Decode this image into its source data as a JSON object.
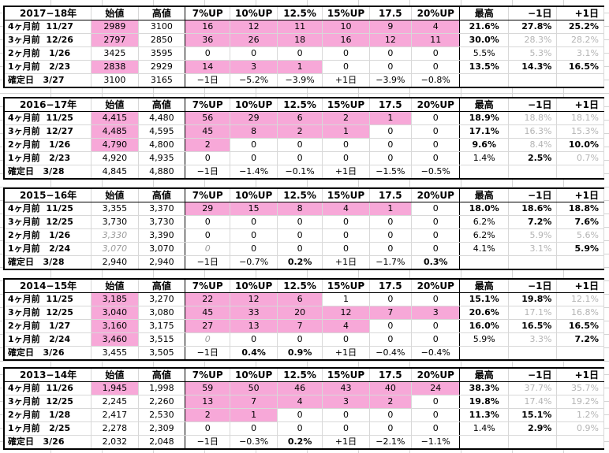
{
  "headers": [
    "始値",
    "高値",
    "7%UP",
    "10%UP",
    "12.5%",
    "15%UP",
    "17.5",
    "20%UP",
    "最高",
    "−1日",
    "+1日"
  ],
  "blocks": [
    {
      "year": "2017−18年",
      "rows": [
        {
          "label": "4ヶ月前  11/27",
          "cells": [
            "2989",
            "3100",
            "16",
            "12",
            "11",
            "10",
            "9",
            "4",
            "21.6%",
            "27.8%",
            "25.2%"
          ],
          "pink": [
            0,
            2,
            3,
            4,
            5,
            6,
            7
          ],
          "gray": [],
          "bold": [
            8,
            9,
            10
          ],
          "ital": []
        },
        {
          "label": "3ヶ月前  12/26",
          "cells": [
            "2797",
            "2850",
            "36",
            "26",
            "18",
            "16",
            "12",
            "11",
            "30.0%",
            "28.3%",
            "28.2%"
          ],
          "pink": [
            0,
            2,
            3,
            4,
            5,
            6,
            7
          ],
          "gray": [
            9,
            10
          ],
          "bold": [
            8
          ],
          "ital": []
        },
        {
          "label": "2ヶ月前   1/26",
          "cells": [
            "3425",
            "3595",
            "0",
            "0",
            "0",
            "0",
            "0",
            "0",
            "5.5%",
            "5.3%",
            "3.1%"
          ],
          "pink": [],
          "gray": [
            9,
            10
          ],
          "bold": [],
          "ital": []
        },
        {
          "label": "1ヶ月前   2/23",
          "cells": [
            "2838",
            "2929",
            "14",
            "3",
            "1",
            "0",
            "0",
            "0",
            "13.5%",
            "14.3%",
            "16.5%"
          ],
          "pink": [
            0,
            2,
            3,
            4
          ],
          "gray": [],
          "bold": [
            8,
            9,
            10
          ],
          "ital": []
        },
        {
          "label": "確定日   3/27",
          "cells": [
            "3100",
            "3165",
            "−1日",
            "−5.2%",
            "−3.9%",
            "+1日",
            "−3.9%",
            "−0.8%",
            "",
            "",
            ""
          ],
          "pink": [],
          "gray": [],
          "bold": [],
          "ital": [],
          "fixed": true
        }
      ]
    },
    {
      "year": "2016−17年",
      "rows": [
        {
          "label": "4ヶ月前  11/25",
          "cells": [
            "4,415",
            "4,480",
            "56",
            "29",
            "6",
            "2",
            "1",
            "0",
            "18.9%",
            "18.8%",
            "18.1%"
          ],
          "pink": [
            0,
            2,
            3,
            4,
            5,
            6
          ],
          "gray": [
            9,
            10
          ],
          "bold": [
            8
          ],
          "ital": []
        },
        {
          "label": "3ヶ月前  12/27",
          "cells": [
            "4,485",
            "4,595",
            "45",
            "8",
            "2",
            "1",
            "0",
            "0",
            "17.1%",
            "16.3%",
            "15.3%"
          ],
          "pink": [
            0,
            2,
            3,
            4,
            5
          ],
          "gray": [
            9,
            10
          ],
          "bold": [
            8
          ],
          "ital": []
        },
        {
          "label": "2ヶ月前   1/26",
          "cells": [
            "4,790",
            "4,800",
            "2",
            "0",
            "0",
            "0",
            "0",
            "0",
            "9.6%",
            "8.4%",
            "10.0%"
          ],
          "pink": [
            0,
            2
          ],
          "gray": [
            9
          ],
          "bold": [
            8,
            10
          ],
          "ital": []
        },
        {
          "label": "1ヶ月前   2/23",
          "cells": [
            "4,920",
            "4,935",
            "0",
            "0",
            "0",
            "0",
            "0",
            "0",
            "1.4%",
            "2.5%",
            "0.7%"
          ],
          "pink": [],
          "gray": [
            10
          ],
          "bold": [
            9
          ],
          "ital": []
        },
        {
          "label": "確定日   3/28",
          "cells": [
            "4,845",
            "4,880",
            "−1日",
            "−1.4%",
            "−0.1%",
            "+1日",
            "−1.5%",
            "−0.5%",
            "",
            "",
            ""
          ],
          "pink": [],
          "gray": [],
          "bold": [],
          "ital": [],
          "fixed": true
        }
      ]
    },
    {
      "year": "2015−16年",
      "rows": [
        {
          "label": "4ヶ月前  11/25",
          "cells": [
            "3,355",
            "3,370",
            "29",
            "15",
            "8",
            "4",
            "1",
            "0",
            "18.0%",
            "18.6%",
            "18.8%"
          ],
          "pink": [
            2,
            3,
            4,
            5,
            6
          ],
          "gray": [],
          "bold": [
            8,
            9,
            10
          ],
          "ital": []
        },
        {
          "label": "3ヶ月前  12/25",
          "cells": [
            "3,730",
            "3,730",
            "0",
            "0",
            "0",
            "0",
            "0",
            "0",
            "6.2%",
            "7.2%",
            "7.6%"
          ],
          "pink": [],
          "gray": [],
          "bold": [
            9,
            10
          ],
          "ital": []
        },
        {
          "label": "2ヶ月前   1/26",
          "cells": [
            "3,330",
            "3,390",
            "0",
            "0",
            "0",
            "0",
            "0",
            "0",
            "6.2%",
            "5.9%",
            "5.6%"
          ],
          "pink": [],
          "gray": [
            9,
            10
          ],
          "bold": [],
          "ital": [
            0
          ]
        },
        {
          "label": "1ヶ月前   2/24",
          "cells": [
            "3,070",
            "3,070",
            "0",
            "0",
            "0",
            "0",
            "0",
            "0",
            "4.1%",
            "3.1%",
            "5.9%"
          ],
          "pink": [],
          "gray": [
            9
          ],
          "bold": [
            10
          ],
          "ital": [
            0,
            2
          ]
        },
        {
          "label": "確定日   3/28",
          "cells": [
            "2,940",
            "2,940",
            "−1日",
            "−0.7%",
            "0.2%",
            "+1日",
            "−1.7%",
            "0.3%",
            "",
            "",
            ""
          ],
          "pink": [],
          "gray": [],
          "bold": [
            4,
            7
          ],
          "ital": [],
          "fixed": true
        }
      ]
    },
    {
      "year": "2014−15年",
      "rows": [
        {
          "label": "4ヶ月前  11/25",
          "cells": [
            "3,185",
            "3,270",
            "22",
            "12",
            "6",
            "1",
            "0",
            "0",
            "15.1%",
            "19.8%",
            "12.1%"
          ],
          "pink": [
            0,
            2,
            3,
            4
          ],
          "gray": [
            10
          ],
          "bold": [
            8,
            9
          ],
          "ital": []
        },
        {
          "label": "3ヶ月前  12/25",
          "cells": [
            "3,040",
            "3,080",
            "45",
            "33",
            "20",
            "12",
            "7",
            "3",
            "20.6%",
            "17.1%",
            "16.8%"
          ],
          "pink": [
            0,
            2,
            3,
            4,
            5,
            6,
            7
          ],
          "gray": [
            9,
            10
          ],
          "bold": [
            8
          ],
          "ital": []
        },
        {
          "label": "2ヶ月前   1/27",
          "cells": [
            "3,160",
            "3,175",
            "27",
            "13",
            "7",
            "4",
            "0",
            "0",
            "16.0%",
            "16.5%",
            "16.5%"
          ],
          "pink": [
            0,
            2,
            3,
            4,
            5
          ],
          "gray": [],
          "bold": [
            8,
            9,
            10
          ],
          "ital": []
        },
        {
          "label": "1ヶ月前   2/24",
          "cells": [
            "3,460",
            "3,515",
            "0",
            "0",
            "0",
            "0",
            "0",
            "0",
            "5.9%",
            "3.3%",
            "7.2%"
          ],
          "pink": [
            0
          ],
          "gray": [
            9
          ],
          "bold": [
            10
          ],
          "ital": [
            2
          ]
        },
        {
          "label": "確定日   3/26",
          "cells": [
            "3,455",
            "3,505",
            "−1日",
            "0.4%",
            "0.9%",
            "+1日",
            "−0.4%",
            "−0.4%",
            "",
            "",
            ""
          ],
          "pink": [],
          "gray": [],
          "bold": [
            3,
            4
          ],
          "ital": [],
          "fixed": true
        }
      ]
    },
    {
      "year": "2013−14年",
      "rows": [
        {
          "label": "4ヶ月前  11/26",
          "cells": [
            "1,945",
            "1,998",
            "59",
            "50",
            "46",
            "43",
            "40",
            "24",
            "38.3%",
            "37.7%",
            "35.7%"
          ],
          "pink": [
            0,
            2,
            3,
            4,
            5,
            6,
            7
          ],
          "gray": [
            9,
            10
          ],
          "bold": [
            8
          ],
          "ital": []
        },
        {
          "label": "3ヶ月前  12/25",
          "cells": [
            "2,245",
            "2,260",
            "13",
            "7",
            "4",
            "3",
            "2",
            "0",
            "19.8%",
            "17.4%",
            "19.2%"
          ],
          "pink": [
            2,
            3,
            4,
            5,
            6
          ],
          "gray": [
            9,
            10
          ],
          "bold": [
            8
          ],
          "ital": []
        },
        {
          "label": "2ヶ月前   1/28",
          "cells": [
            "2,417",
            "2,530",
            "2",
            "1",
            "0",
            "0",
            "0",
            "0",
            "11.3%",
            "15.1%",
            "1.2%"
          ],
          "pink": [
            2,
            3
          ],
          "gray": [
            10
          ],
          "bold": [
            8,
            9
          ],
          "ital": []
        },
        {
          "label": "1ヶ月前   2/25",
          "cells": [
            "2,278",
            "2,309",
            "0",
            "0",
            "0",
            "0",
            "0",
            "0",
            "1.4%",
            "2.9%",
            "0.9%"
          ],
          "pink": [],
          "gray": [
            10
          ],
          "bold": [
            9
          ],
          "ital": []
        },
        {
          "label": "確定日   3/26",
          "cells": [
            "2,032",
            "2,048",
            "−1日",
            "−0.3%",
            "0.2%",
            "+1日",
            "−2.1%",
            "−1.1%",
            "",
            "",
            ""
          ],
          "pink": [],
          "gray": [],
          "bold": [
            4
          ],
          "ital": [],
          "fixed": true
        }
      ]
    }
  ]
}
